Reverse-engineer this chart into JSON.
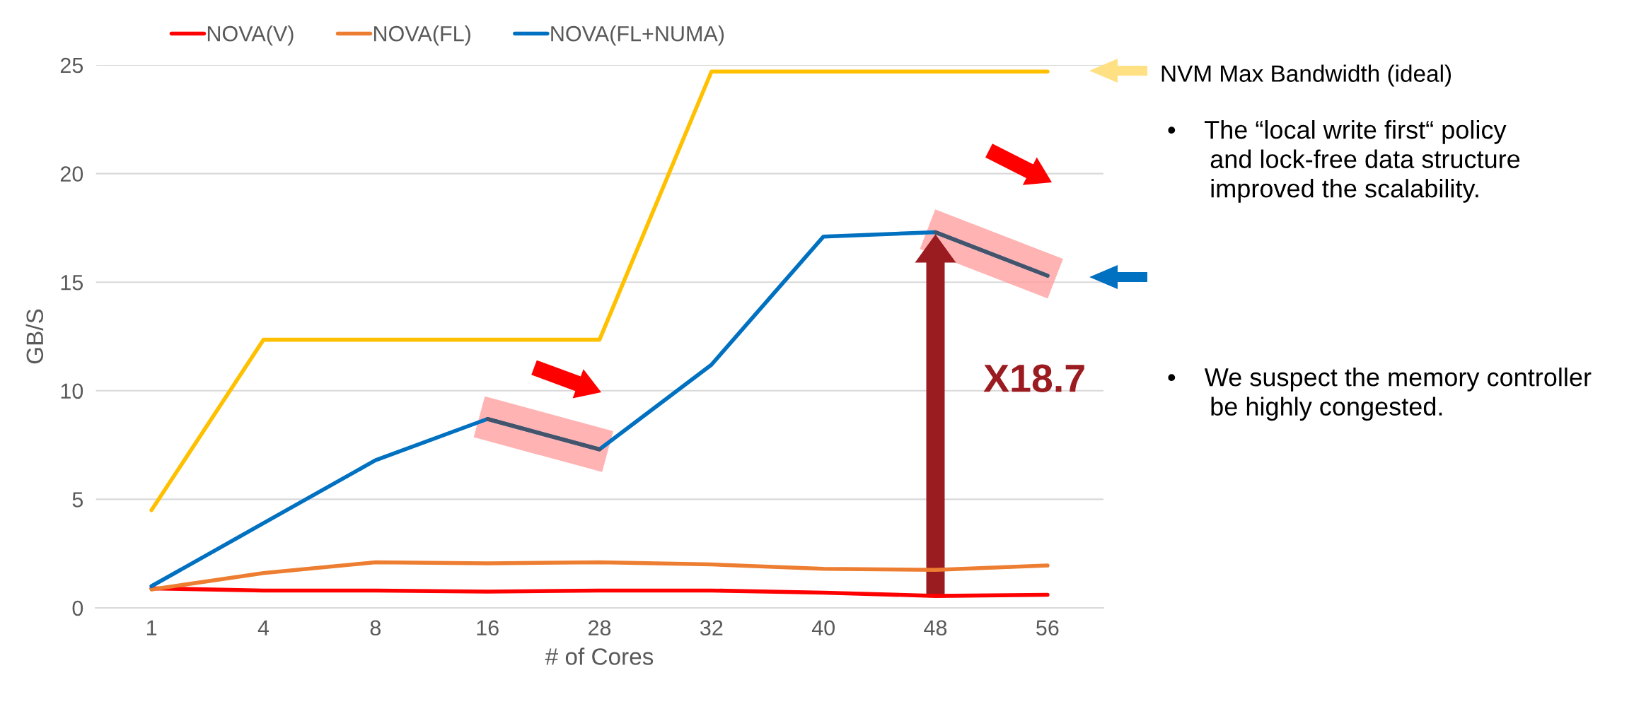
{
  "chart_data": {
    "type": "line",
    "xlabel": "# of Cores",
    "ylabel": "GB/S",
    "categories": [
      "1",
      "4",
      "8",
      "16",
      "28",
      "32",
      "40",
      "48",
      "56"
    ],
    "series": [
      {
        "name": "NOVA(V)",
        "color": "#ff0000",
        "values": [
          0.9,
          0.8,
          0.8,
          0.75,
          0.8,
          0.8,
          0.7,
          0.55,
          0.6
        ]
      },
      {
        "name": "NOVA(FL)",
        "color": "#ed7d31",
        "values": [
          0.85,
          1.6,
          2.1,
          2.05,
          2.1,
          2.0,
          1.8,
          1.75,
          1.95
        ]
      },
      {
        "name": "NOVA(FL+NUMA)",
        "color": "#0070c0",
        "values": [
          1.0,
          3.9,
          6.8,
          8.7,
          7.3,
          11.2,
          17.1,
          17.3,
          15.3
        ]
      },
      {
        "color": "#ffc000",
        "values": [
          4.5,
          12.35,
          12.35,
          12.35,
          12.35,
          24.7,
          24.7,
          24.7,
          24.7
        ]
      }
    ],
    "ylim": [
      0,
      25
    ],
    "yticks": [
      0,
      5,
      10,
      15,
      20,
      25
    ],
    "grid": "y",
    "legend": "top",
    "marker": "none",
    "line_style": "solid",
    "annotations": [
      "NVM Max Bandwidth (ideal)",
      "X18.7",
      "•    The “local write first“ policy\n      and lock-free data structure\n      improved the scalability.",
      "•    We suspect the memory controller\n      be highly congested."
    ]
  }
}
